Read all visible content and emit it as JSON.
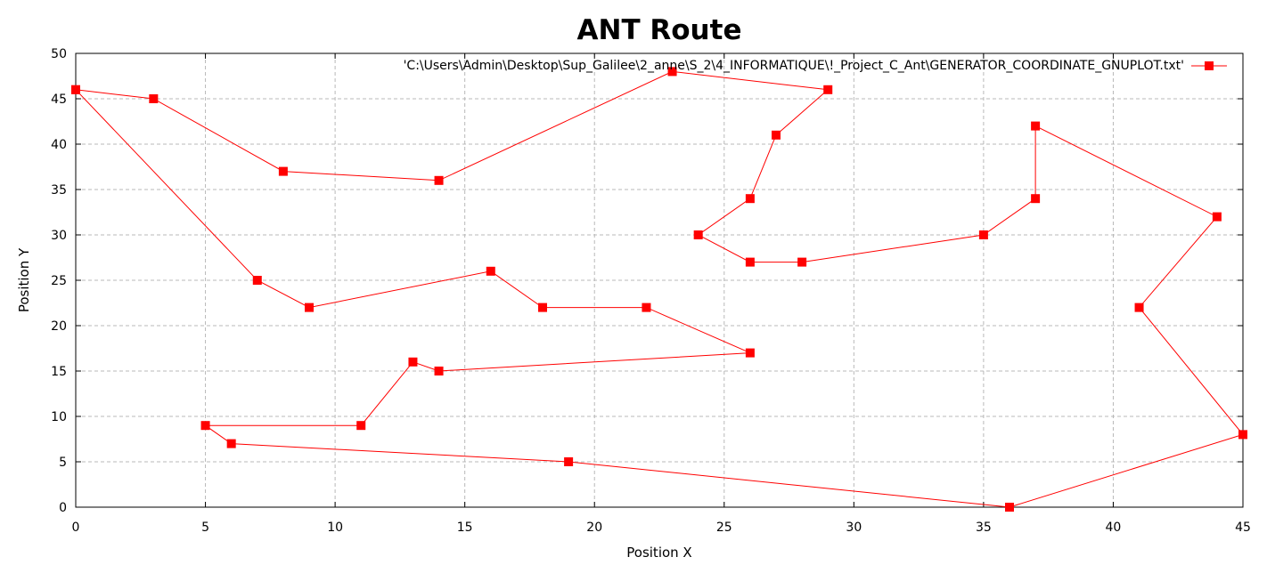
{
  "chart_data": {
    "type": "line",
    "title": "ANT Route",
    "xlabel": "Position X",
    "ylabel": "Position Y",
    "xlim": [
      0,
      45
    ],
    "ylim": [
      0,
      50
    ],
    "xticks": [
      0,
      5,
      10,
      15,
      20,
      25,
      30,
      35,
      40,
      45
    ],
    "yticks": [
      0,
      5,
      10,
      15,
      20,
      25,
      30,
      35,
      40,
      45,
      50
    ],
    "grid": true,
    "legend_position": "top-right",
    "series": [
      {
        "name": "'C:\\Users\\Admin\\Desktop\\Sup_Galilee\\2_anne\\S_2\\4_INFORMATIQUE\\!_Project_C_Ant\\GENERATOR_COORDINATE_GNUPLOT.txt'",
        "color": "#ff0000",
        "marker": "square",
        "points": [
          [
            0,
            46
          ],
          [
            3,
            45
          ],
          [
            8,
            37
          ],
          [
            14,
            36
          ],
          [
            23,
            48
          ],
          [
            29,
            46
          ],
          [
            27,
            41
          ],
          [
            26,
            34
          ],
          [
            24,
            30
          ],
          [
            26,
            27
          ],
          [
            28,
            27
          ],
          [
            35,
            30
          ],
          [
            37,
            34
          ],
          [
            37,
            42
          ],
          [
            44,
            32
          ],
          [
            41,
            22
          ],
          [
            45,
            8
          ],
          [
            36,
            0
          ],
          [
            19,
            5
          ],
          [
            6,
            7
          ],
          [
            5,
            9
          ],
          [
            11,
            9
          ],
          [
            13,
            16
          ],
          [
            14,
            15
          ],
          [
            26,
            17
          ],
          [
            22,
            22
          ],
          [
            18,
            22
          ],
          [
            16,
            26
          ],
          [
            9,
            22
          ],
          [
            7,
            25
          ],
          [
            0,
            46
          ]
        ]
      }
    ]
  }
}
